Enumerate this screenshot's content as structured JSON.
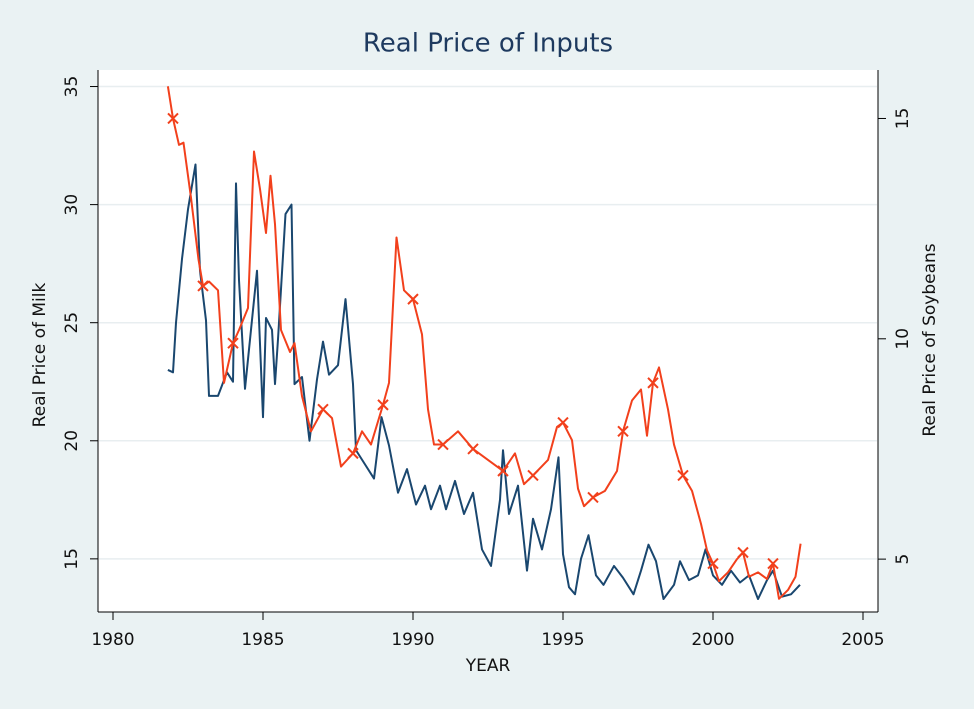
{
  "chart_data": {
    "type": "line",
    "title": "Real Price of Inputs",
    "xlabel": "YEAR",
    "ylabel": "Real Price of Milk",
    "y2label": "Real Price of Soybeans",
    "xlim": [
      1979.5,
      2005.5
    ],
    "xticks": [
      1980,
      1985,
      1990,
      1995,
      2000,
      2005
    ],
    "ylim": [
      12.75,
      35.7
    ],
    "yticks": [
      15,
      20,
      25,
      30,
      35
    ],
    "y2lim": [
      3.8,
      16.1
    ],
    "y2ticks": [
      5,
      10,
      15
    ],
    "grid": true,
    "series": [
      {
        "name": "Real Price of Milk",
        "color": "#1a476f",
        "x": [
          1981.83,
          1982.0,
          1982.1,
          1982.3,
          1982.5,
          1982.75,
          1982.9,
          1983.1,
          1983.2,
          1983.5,
          1983.8,
          1984.0,
          1984.1,
          1984.2,
          1984.4,
          1984.6,
          1984.8,
          1985.0,
          1985.1,
          1985.3,
          1985.4,
          1985.5,
          1985.75,
          1985.95,
          1986.05,
          1986.3,
          1986.55,
          1986.8,
          1987.0,
          1987.2,
          1987.5,
          1987.75,
          1988.0,
          1988.1,
          1988.4,
          1988.7,
          1988.95,
          1989.2,
          1989.5,
          1989.8,
          1990.1,
          1990.4,
          1990.6,
          1990.9,
          1991.1,
          1991.4,
          1991.7,
          1992.0,
          1992.3,
          1992.6,
          1992.9,
          1993.0,
          1993.2,
          1993.5,
          1993.8,
          1994.0,
          1994.3,
          1994.6,
          1994.85,
          1995.0,
          1995.2,
          1995.4,
          1995.6,
          1995.85,
          1996.1,
          1996.35,
          1996.7,
          1997.0,
          1997.35,
          1997.6,
          1997.85,
          1998.1,
          1998.35,
          1998.7,
          1998.9,
          1999.2,
          1999.5,
          1999.75,
          2000.0,
          2000.3,
          2000.6,
          2000.9,
          2001.2,
          2001.5,
          2001.8,
          2002.0,
          2002.3,
          2002.6,
          2002.9
        ],
        "values": [
          23.0,
          22.9,
          25.0,
          27.7,
          29.8,
          31.7,
          27.2,
          25.1,
          21.9,
          21.9,
          22.9,
          22.5,
          30.9,
          26.8,
          22.2,
          24.7,
          27.2,
          21.0,
          25.2,
          24.7,
          22.4,
          24.3,
          29.6,
          30.0,
          22.4,
          22.7,
          20.0,
          22.6,
          24.2,
          22.8,
          23.2,
          26.0,
          22.4,
          19.6,
          19.0,
          18.4,
          21.0,
          19.8,
          17.8,
          18.8,
          17.3,
          18.1,
          17.1,
          18.1,
          17.1,
          18.3,
          16.9,
          17.8,
          15.4,
          14.7,
          17.5,
          19.6,
          16.9,
          18.1,
          14.5,
          16.7,
          15.4,
          17.1,
          19.3,
          15.2,
          13.8,
          13.5,
          15.0,
          16.0,
          14.3,
          13.9,
          14.7,
          14.2,
          13.5,
          14.5,
          15.6,
          14.9,
          13.3,
          13.9,
          14.9,
          14.1,
          14.3,
          15.4,
          14.3,
          13.9,
          14.5,
          14.0,
          14.3,
          13.3,
          14.1,
          14.5,
          13.4,
          13.5,
          13.9
        ]
      },
      {
        "name": "Real Price of Soybeans",
        "color": "#f2401c",
        "axis": "y2",
        "marker": "x",
        "x": [
          1981.83,
          1982.0,
          1982.2,
          1982.35,
          1982.6,
          1982.85,
          1983.0,
          1983.2,
          1983.5,
          1983.7,
          1984.0,
          1984.2,
          1984.5,
          1984.7,
          1984.9,
          1985.1,
          1985.25,
          1985.4,
          1985.6,
          1985.9,
          1986.05,
          1986.3,
          1986.6,
          1987.0,
          1987.3,
          1987.6,
          1988.0,
          1988.3,
          1988.6,
          1989.0,
          1989.2,
          1989.45,
          1989.7,
          1990.0,
          1990.3,
          1990.5,
          1990.7,
          1991.0,
          1991.5,
          1992.0,
          1992.5,
          1993.0,
          1993.4,
          1993.7,
          1994.0,
          1994.5,
          1994.8,
          1995.0,
          1995.3,
          1995.5,
          1995.7,
          1996.0,
          1996.4,
          1996.8,
          1997.0,
          1997.3,
          1997.6,
          1997.8,
          1998.0,
          1998.2,
          1998.5,
          1998.7,
          1999.0,
          1999.3,
          1999.6,
          1999.8,
          2000.0,
          2000.2,
          2000.5,
          2000.8,
          2001.0,
          2001.2,
          2001.5,
          2001.8,
          2002.0,
          2002.2,
          2002.5,
          2002.75,
          2002.92
        ],
        "values": [
          15.73,
          15.0,
          14.4,
          14.45,
          13.2,
          11.8,
          11.2,
          11.3,
          11.1,
          9.0,
          9.9,
          10.2,
          10.7,
          14.25,
          13.4,
          12.4,
          13.7,
          12.6,
          10.2,
          9.7,
          9.9,
          8.7,
          7.9,
          8.4,
          8.2,
          7.1,
          7.4,
          7.9,
          7.6,
          8.5,
          9.0,
          12.3,
          11.1,
          10.9,
          10.1,
          8.4,
          7.6,
          7.6,
          7.9,
          7.5,
          7.25,
          7.0,
          7.4,
          6.7,
          6.9,
          7.25,
          8.0,
          8.1,
          7.7,
          6.6,
          6.2,
          6.4,
          6.55,
          7.0,
          7.9,
          8.6,
          8.85,
          7.8,
          9.0,
          9.35,
          8.4,
          7.6,
          6.9,
          6.55,
          5.8,
          5.2,
          4.9,
          4.5,
          4.7,
          5.0,
          5.15,
          4.6,
          4.7,
          4.55,
          4.9,
          4.1,
          4.3,
          4.6,
          5.35
        ]
      }
    ]
  }
}
